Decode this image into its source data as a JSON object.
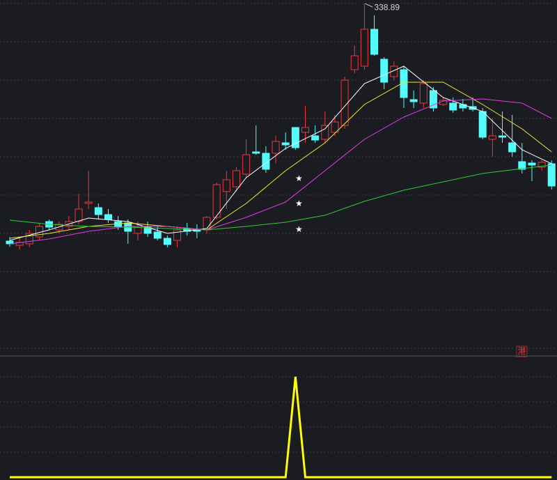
{
  "chart_data": {
    "type": "candlestick",
    "background": "#1b1c22",
    "up_color": "#e8383d",
    "down_color": "#54fcfc",
    "grid": true,
    "ylim": [
      90,
      340
    ],
    "grid_levels": [
      339,
      311.5,
      284,
      256.5,
      229,
      201.5,
      174,
      146.5,
      119,
      91.5
    ],
    "open": [
      168.5,
      165.5,
      166.5,
      171.5,
      182.5,
      176.5,
      179,
      182.5,
      195.5,
      192.5,
      187.5,
      182.5,
      181.5,
      174,
      178.5,
      175,
      170.5,
      169,
      177.5,
      176.5,
      176.5,
      185.5,
      204,
      207.5,
      216.5,
      232.5,
      231.5,
      231.5,
      239,
      250,
      246.5,
      244,
      241.5,
      246.5,
      251.5,
      291.5,
      294,
      320.5,
      299,
      286.5,
      291.5,
      270,
      267.5,
      276.5,
      266.5,
      267.5,
      266.5,
      265,
      261.5,
      241.5,
      244,
      239,
      225.5,
      224.5,
      221.5,
      224
    ],
    "high": [
      171.5,
      170.5,
      176.5,
      181.5,
      184,
      182.5,
      186.5,
      202.5,
      219,
      195.5,
      191.5,
      186.5,
      184,
      182.5,
      182.5,
      179,
      172.5,
      179,
      181.5,
      180.5,
      186.5,
      210.5,
      219,
      221.5,
      241.5,
      251.5,
      236.5,
      244,
      246.5,
      250,
      265.5,
      251.5,
      261.5,
      259,
      286.5,
      309,
      338.89,
      330.5,
      300.5,
      297.5,
      294,
      276.5,
      284,
      279,
      271.5,
      271.5,
      270.5,
      271.5,
      264,
      256.5,
      261.5,
      259,
      239,
      226.5,
      226.5,
      226.5
    ],
    "low": [
      164.5,
      162.5,
      164,
      169,
      176.5,
      174,
      176.5,
      180.5,
      191.5,
      184,
      181.5,
      176.5,
      166.5,
      169,
      171.5,
      169,
      164,
      164,
      172.5,
      170.5,
      174,
      184,
      191.5,
      204,
      214,
      230.5,
      217.5,
      224,
      234,
      234,
      239,
      239,
      239,
      244,
      249,
      289,
      291.5,
      301.5,
      277.5,
      284,
      264,
      264,
      264,
      261.5,
      265.5,
      260.5,
      261.5,
      261.5,
      241.5,
      229,
      239,
      229,
      217,
      211.5,
      219,
      205.5
    ],
    "close": [
      166.5,
      167.5,
      174,
      179,
      178.5,
      180.5,
      182.5,
      191.5,
      196.5,
      187.5,
      184,
      179,
      175.5,
      179,
      174,
      170.5,
      166,
      176.5,
      175.5,
      175.5,
      185.5,
      209,
      212.5,
      219,
      230.5,
      231.5,
      220,
      240,
      237.5,
      235.5,
      250,
      241,
      251.5,
      254,
      284,
      301.5,
      320.5,
      302.5,
      282.5,
      294,
      271.5,
      268.5,
      281.5,
      264,
      269.5,
      262.5,
      264,
      263,
      243,
      244,
      243,
      232.5,
      220,
      223,
      225,
      208
    ],
    "ma_x": [
      0,
      4,
      8,
      12,
      16,
      20,
      24,
      28,
      32,
      36,
      40,
      44,
      48,
      52,
      55
    ],
    "moving_averages": [
      {
        "color": "#ffffff",
        "values": [
          169,
          176.5,
          185,
          182.5,
          174,
          177.5,
          214,
          235,
          249,
          281.5,
          294,
          271.5,
          261.5,
          234,
          224
        ]
      },
      {
        "color": "#f0e62e",
        "values": [
          170.5,
          174,
          179,
          181.5,
          179,
          176.5,
          195.5,
          219,
          239,
          266.5,
          282.5,
          282.5,
          266.5,
          249,
          232.5
        ]
      },
      {
        "color": "#e03ce0",
        "values": [
          166.5,
          170,
          175.5,
          179,
          179,
          176.5,
          185.5,
          196.5,
          219,
          241.5,
          257.5,
          269,
          270.5,
          267.5,
          256.5
        ]
      },
      {
        "color": "#2ecc2e",
        "values": [
          183.5,
          180.5,
          179,
          178.5,
          177.5,
          176.5,
          179,
          182,
          187,
          197,
          205,
          211,
          217,
          220.5,
          223
        ]
      }
    ],
    "markers": {
      "symbol": "★",
      "color": "#ffffff",
      "x": [
        29,
        29,
        29
      ],
      "values": [
        213,
        195,
        176.5
      ]
    },
    "badge": "港",
    "indicator": {
      "type": "line",
      "color": "#ffff00",
      "ylim": [
        0,
        1.2
      ],
      "grid_levels": [
        0.25,
        0.5,
        0.75,
        1
      ],
      "values": [
        0,
        0,
        0,
        0,
        0,
        0,
        0,
        0,
        0,
        0,
        0,
        0,
        0,
        0,
        0,
        0,
        0,
        0,
        0,
        0,
        0,
        0,
        0,
        0,
        0,
        0,
        0,
        0,
        0,
        1,
        0,
        0,
        0,
        0,
        0,
        0,
        0,
        0,
        0,
        0,
        0,
        0,
        0,
        0,
        0,
        0,
        0,
        0,
        0,
        0,
        0,
        0,
        0,
        0,
        0,
        0
      ]
    }
  }
}
